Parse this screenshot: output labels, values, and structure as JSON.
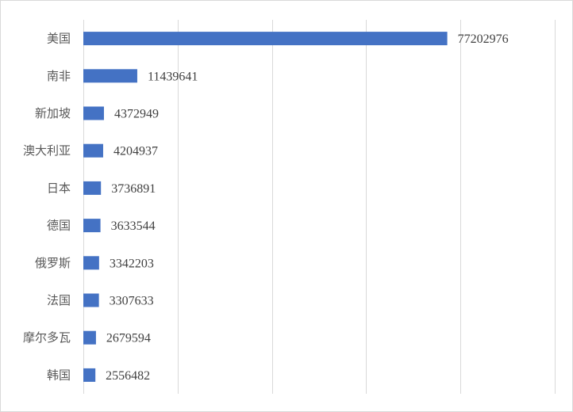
{
  "chart_data": {
    "type": "bar",
    "orientation": "horizontal",
    "categories": [
      "美国",
      "南非",
      "新加坡",
      "澳大利亚",
      "日本",
      "德国",
      "俄罗斯",
      "法国",
      "摩尔多瓦",
      "韩国"
    ],
    "values": [
      77202976,
      11439641,
      4372949,
      4204937,
      3736891,
      3633544,
      3342203,
      3307633,
      2679594,
      2556482
    ],
    "value_labels": [
      "77202976",
      "11439641",
      "4372949",
      "4204937",
      "3736891",
      "3633544",
      "3342203",
      "3307633",
      "2679594",
      "2556482"
    ],
    "xlim": [
      0,
      100000000
    ],
    "x_gridlines": [
      0,
      20000000,
      40000000,
      60000000,
      80000000,
      100000000
    ],
    "grid": true,
    "x_tick_labels_shown": false,
    "legend": "none",
    "colors": {
      "bar": "#4472c4",
      "grid": "#d9d9d9",
      "tick_text": "#595959",
      "label_text": "#404040"
    }
  }
}
